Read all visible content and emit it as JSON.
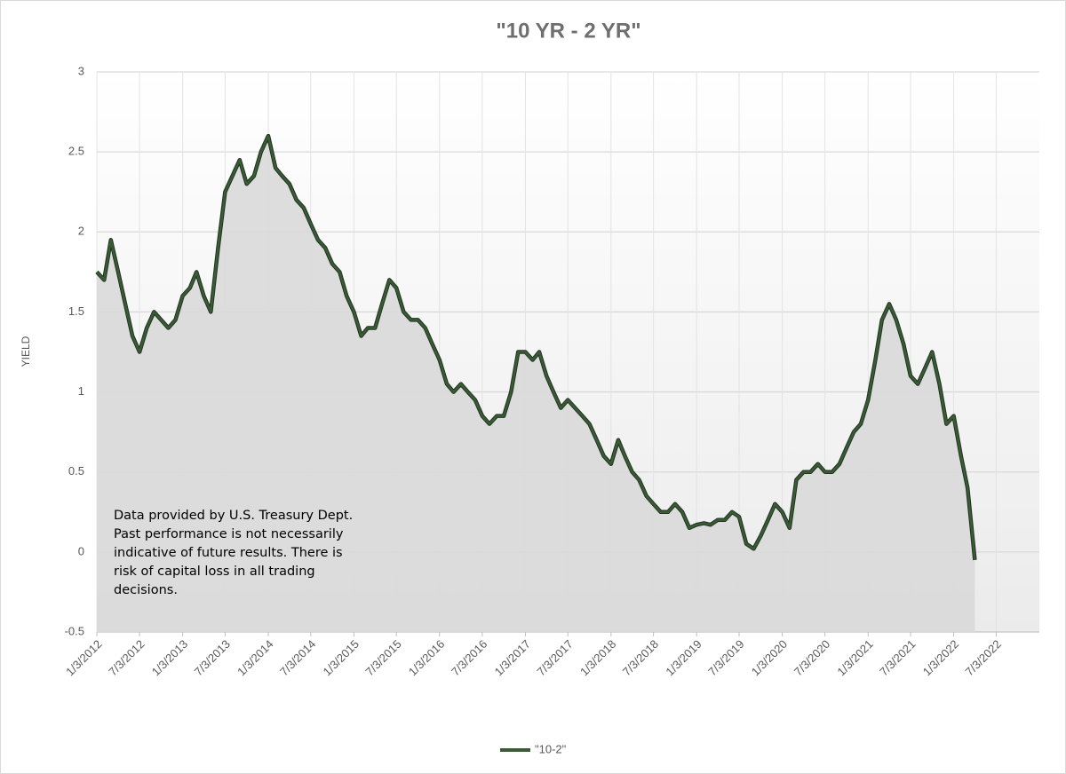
{
  "chart_data": {
    "type": "line",
    "title": "\"10 YR - 2 YR\"",
    "y_label": "YIELD",
    "annotation": "Data provided by U.S. Treasury Dept. Past performance is not necessarily indicative of future results. There is risk of capital loss in all trading decisions.",
    "x": [
      "2012-01-03",
      "2012-02-03",
      "2012-03-03",
      "2012-04-03",
      "2012-05-03",
      "2012-06-03",
      "2012-07-03",
      "2012-08-03",
      "2012-09-03",
      "2012-10-03",
      "2012-11-03",
      "2012-12-03",
      "2013-01-03",
      "2013-02-03",
      "2013-03-03",
      "2013-04-03",
      "2013-05-03",
      "2013-06-03",
      "2013-07-03",
      "2013-08-03",
      "2013-09-03",
      "2013-10-03",
      "2013-11-03",
      "2013-12-03",
      "2014-01-03",
      "2014-02-03",
      "2014-03-03",
      "2014-04-03",
      "2014-05-03",
      "2014-06-03",
      "2014-07-03",
      "2014-08-03",
      "2014-09-03",
      "2014-10-03",
      "2014-11-03",
      "2014-12-03",
      "2015-01-03",
      "2015-02-03",
      "2015-03-03",
      "2015-04-03",
      "2015-05-03",
      "2015-06-03",
      "2015-07-03",
      "2015-08-03",
      "2015-09-03",
      "2015-10-03",
      "2015-11-03",
      "2015-12-03",
      "2016-01-03",
      "2016-02-03",
      "2016-03-03",
      "2016-04-03",
      "2016-05-03",
      "2016-06-03",
      "2016-07-03",
      "2016-08-03",
      "2016-09-03",
      "2016-10-03",
      "2016-11-03",
      "2016-12-03",
      "2017-01-03",
      "2017-02-03",
      "2017-03-03",
      "2017-04-03",
      "2017-05-03",
      "2017-06-03",
      "2017-07-03",
      "2017-08-03",
      "2017-09-03",
      "2017-10-03",
      "2017-11-03",
      "2017-12-03",
      "2018-01-03",
      "2018-02-03",
      "2018-03-03",
      "2018-04-03",
      "2018-05-03",
      "2018-06-03",
      "2018-07-03",
      "2018-08-03",
      "2018-09-03",
      "2018-10-03",
      "2018-11-03",
      "2018-12-03",
      "2019-01-03",
      "2019-02-03",
      "2019-03-03",
      "2019-04-03",
      "2019-05-03",
      "2019-06-03",
      "2019-07-03",
      "2019-08-03",
      "2019-09-03",
      "2019-10-03",
      "2019-11-03",
      "2019-12-03",
      "2020-01-03",
      "2020-02-03",
      "2020-03-03",
      "2020-04-03",
      "2020-05-03",
      "2020-06-03",
      "2020-07-03",
      "2020-08-03",
      "2020-09-03",
      "2020-10-03",
      "2020-11-03",
      "2020-12-03",
      "2021-01-03",
      "2021-02-03",
      "2021-03-03",
      "2021-04-03",
      "2021-05-03",
      "2021-06-03",
      "2021-07-03",
      "2021-08-03",
      "2021-09-03",
      "2021-10-03",
      "2021-11-03",
      "2021-12-03",
      "2022-01-03",
      "2022-02-03",
      "2022-03-03",
      "2022-04-03"
    ],
    "series": [
      {
        "name": "\"10-2\"",
        "color": "#3b5a36",
        "values": [
          1.75,
          1.7,
          1.95,
          1.75,
          1.55,
          1.35,
          1.25,
          1.4,
          1.5,
          1.45,
          1.4,
          1.45,
          1.6,
          1.65,
          1.75,
          1.6,
          1.5,
          1.9,
          2.25,
          2.35,
          2.45,
          2.3,
          2.35,
          2.5,
          2.6,
          2.4,
          2.35,
          2.3,
          2.2,
          2.15,
          2.05,
          1.95,
          1.9,
          1.8,
          1.75,
          1.6,
          1.5,
          1.35,
          1.4,
          1.4,
          1.55,
          1.7,
          1.65,
          1.5,
          1.45,
          1.45,
          1.4,
          1.3,
          1.2,
          1.05,
          1.0,
          1.05,
          1.0,
          0.95,
          0.85,
          0.8,
          0.85,
          0.85,
          1.0,
          1.25,
          1.25,
          1.2,
          1.25,
          1.1,
          1.0,
          0.9,
          0.95,
          0.9,
          0.85,
          0.8,
          0.7,
          0.6,
          0.55,
          0.7,
          0.6,
          0.5,
          0.45,
          0.35,
          0.3,
          0.25,
          0.25,
          0.3,
          0.25,
          0.15,
          0.17,
          0.18,
          0.17,
          0.2,
          0.2,
          0.25,
          0.22,
          0.05,
          0.02,
          0.1,
          0.2,
          0.3,
          0.25,
          0.15,
          0.45,
          0.5,
          0.5,
          0.55,
          0.5,
          0.5,
          0.55,
          0.65,
          0.75,
          0.8,
          0.95,
          1.2,
          1.45,
          1.55,
          1.45,
          1.3,
          1.1,
          1.05,
          1.15,
          1.25,
          1.05,
          0.8,
          0.85,
          0.6,
          0.4,
          -0.05
        ]
      }
    ],
    "xlim": [
      "2012-01-03",
      "2023-01-03"
    ],
    "xticks": [
      {
        "value": "2012-01-03",
        "label": "1/3/2012"
      },
      {
        "value": "2012-07-03",
        "label": "7/3/2012"
      },
      {
        "value": "2013-01-03",
        "label": "1/3/2013"
      },
      {
        "value": "2013-07-03",
        "label": "7/3/2013"
      },
      {
        "value": "2014-01-03",
        "label": "1/3/2014"
      },
      {
        "value": "2014-07-03",
        "label": "7/3/2014"
      },
      {
        "value": "2015-01-03",
        "label": "1/3/2015"
      },
      {
        "value": "2015-07-03",
        "label": "7/3/2015"
      },
      {
        "value": "2016-01-03",
        "label": "1/3/2016"
      },
      {
        "value": "2016-07-03",
        "label": "7/3/2016"
      },
      {
        "value": "2017-01-03",
        "label": "1/3/2017"
      },
      {
        "value": "2017-07-03",
        "label": "7/3/2017"
      },
      {
        "value": "2018-01-03",
        "label": "1/3/2018"
      },
      {
        "value": "2018-07-03",
        "label": "7/3/2018"
      },
      {
        "value": "2019-01-03",
        "label": "1/3/2019"
      },
      {
        "value": "2019-07-03",
        "label": "7/3/2019"
      },
      {
        "value": "2020-01-03",
        "label": "1/3/2020"
      },
      {
        "value": "2020-07-03",
        "label": "7/3/2020"
      },
      {
        "value": "2021-01-03",
        "label": "1/3/2021"
      },
      {
        "value": "2021-07-03",
        "label": "7/3/2021"
      },
      {
        "value": "2022-01-03",
        "label": "1/3/2022"
      },
      {
        "value": "2022-07-03",
        "label": "7/3/2022"
      }
    ],
    "ylim": [
      -0.5,
      3
    ],
    "yticks": [
      -0.5,
      0,
      0.5,
      1,
      1.5,
      2,
      2.5,
      3
    ],
    "grid": true,
    "legend": "bottom"
  }
}
